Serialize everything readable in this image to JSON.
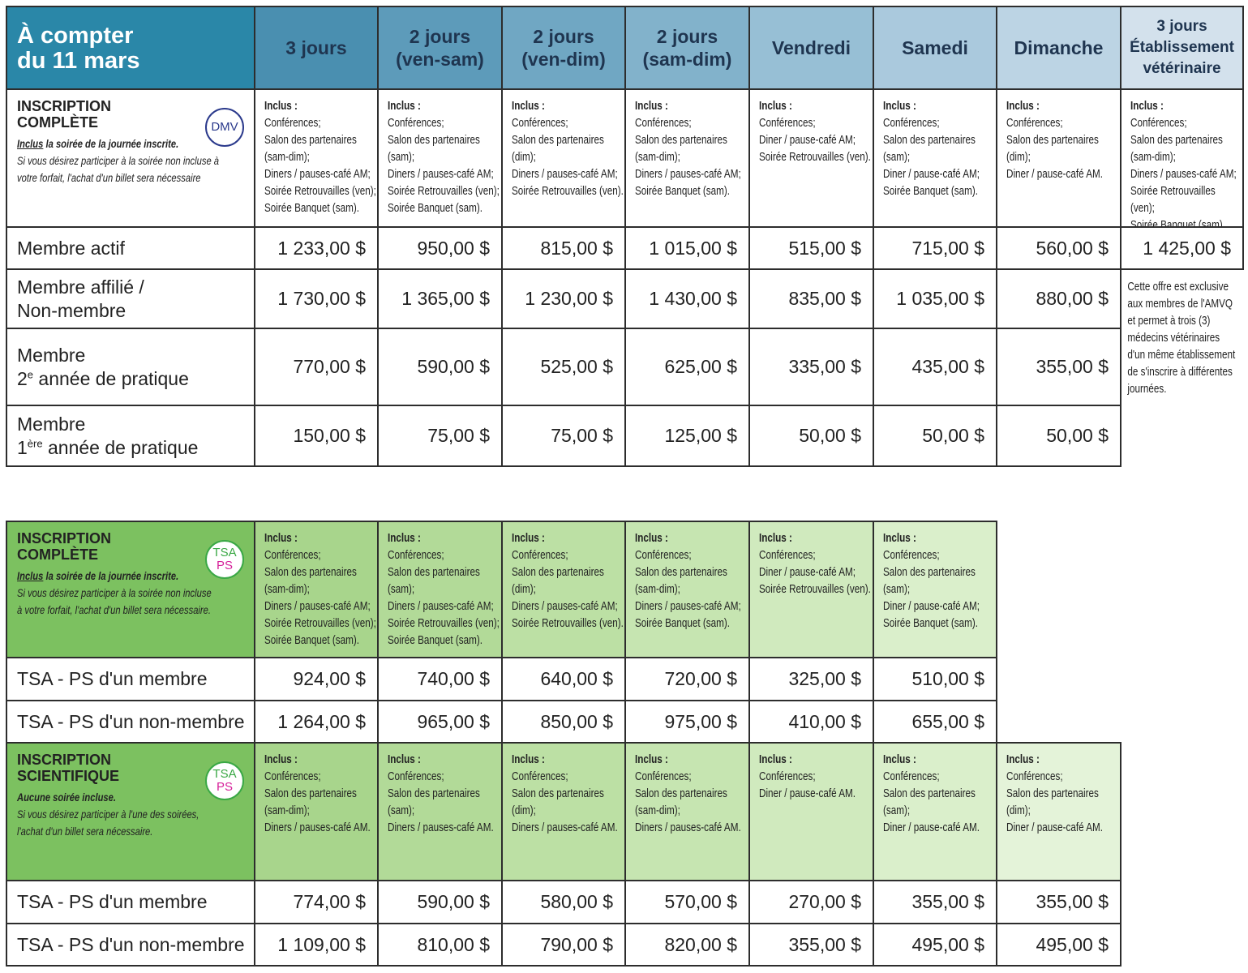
{
  "pricing_dmv": {
    "corner": [
      "À compter",
      "du 11 mars"
    ],
    "columns": [
      [
        "3 jours"
      ],
      [
        "2 jours",
        "(ven-sam)"
      ],
      [
        "2 jours",
        "(ven-dim)"
      ],
      [
        "2 jours",
        "(sam-dim)"
      ],
      [
        "Vendredi"
      ],
      [
        "Samedi"
      ],
      [
        "Dimanche"
      ],
      [
        "3 jours",
        "Établissement",
        "vétérinaire"
      ]
    ],
    "inclusion": {
      "title": [
        "INSCRIPTION",
        "COMPLÈTE"
      ],
      "badge": [
        "DMV"
      ],
      "badge_colors": [
        "#2b3a8c"
      ],
      "note_emph": "Inclus",
      "note_bold": " la soirée de la journée inscrite.",
      "note_lines": [
        "Si vous désirez participer à la soirée non incluse à",
        "votre forfait, l'achat d'un billet sera nécessaire"
      ],
      "cells": [
        {
          "heading": "Inclus :",
          "items": [
            "Conférences;",
            "Salon des partenaires",
            "(sam-dim);",
            "Diners / pauses-café AM;",
            "Soirée Retrouvailles (ven);",
            "Soirée Banquet (sam)."
          ]
        },
        {
          "heading": "Inclus :",
          "items": [
            "Conférences;",
            "Salon des partenaires",
            "(sam);",
            "Diners / pauses-café AM;",
            "Soirée Retrouvailles (ven);",
            "Soirée Banquet (sam)."
          ]
        },
        {
          "heading": "Inclus :",
          "items": [
            "Conférences;",
            "Salon des partenaires",
            "(dim);",
            "Diners / pauses-café AM;",
            "Soirée Retrouvailles (ven)."
          ]
        },
        {
          "heading": "Inclus :",
          "items": [
            "Conférences;",
            "Salon des partenaires",
            "(sam-dim);",
            "Diners / pauses-café AM;",
            "Soirée Banquet (sam)."
          ]
        },
        {
          "heading": "Inclus :",
          "items": [
            "Conférences;",
            "Diner / pause-café AM;",
            "Soirée Retrouvailles (ven)."
          ]
        },
        {
          "heading": "Inclus :",
          "items": [
            "Conférences;",
            "Salon des partenaires",
            "(sam);",
            "Diner / pause-café AM;",
            "Soirée Banquet (sam)."
          ]
        },
        {
          "heading": "Inclus :",
          "items": [
            "Conférences;",
            "Salon des partenaires",
            "(dim);",
            "Diner / pause-café AM."
          ]
        },
        {
          "heading": "Inclus :",
          "items": [
            "Conférences;",
            "Salon des partenaires",
            "(sam-dim);",
            "Diners / pauses-café AM;",
            "Soirée Retrouvailles (ven);",
            "Soirée Banquet (sam)."
          ]
        }
      ]
    },
    "rows": [
      {
        "label": [
          [
            "Membre actif"
          ]
        ],
        "prices": [
          "1 233,00 $",
          "950,00 $",
          "815,00 $",
          "1 015,00 $",
          "515,00 $",
          "715,00 $",
          "560,00 $",
          "1 425,00 $"
        ]
      },
      {
        "label": [
          [
            "Membre affilié /"
          ],
          [
            "Non-membre"
          ]
        ],
        "prices": [
          "1 730,00 $",
          "1 365,00 $",
          "1 230,00 $",
          "1 430,00 $",
          "835,00 $",
          "1 035,00 $",
          "880,00 $"
        ]
      },
      {
        "label": [
          [
            "Membre"
          ],
          [
            "2",
            {
              "sup": "e"
            },
            " année de pratique"
          ]
        ],
        "prices": [
          "770,00 $",
          "590,00 $",
          "525,00 $",
          "625,00 $",
          "335,00 $",
          "435,00 $",
          "355,00 $"
        ]
      },
      {
        "label": [
          [
            "Membre"
          ],
          [
            "1",
            {
              "sup": "ère"
            },
            " année de pratique"
          ]
        ],
        "prices": [
          "150,00 $",
          "75,00 $",
          "75,00 $",
          "125,00 $",
          "50,00 $",
          "50,00 $",
          "50,00 $"
        ]
      }
    ],
    "exclusive_note": [
      "Cette offre est exclusive",
      "aux membres de l'AMVQ",
      "et permet à trois (3)",
      "médecins vétérinaires",
      "d'un même établissement",
      "de s'inscrire à différentes",
      "journées."
    ]
  },
  "pricing_tsa": {
    "complete": {
      "inclusion": {
        "title": [
          "INSCRIPTION",
          "COMPLÈTE"
        ],
        "badge": [
          "TSA",
          "PS"
        ],
        "badge_colors": [
          "#3aa845",
          "#d6219a"
        ],
        "note_emph": "Inclus",
        "note_bold": " la soirée de la journée inscrite.",
        "note_lines": [
          "Si vous désirez participer à la soirée non incluse",
          "à votre forfait, l'achat d'un billet sera nécessaire."
        ],
        "cells": [
          {
            "heading": "Inclus :",
            "items": [
              "Conférences;",
              "Salon des partenaires",
              "(sam-dim);",
              "Diners / pauses-café AM;",
              "Soirée Retrouvailles (ven);",
              "Soirée Banquet (sam)."
            ]
          },
          {
            "heading": "Inclus :",
            "items": [
              "Conférences;",
              "Salon des partenaires",
              "(sam);",
              "Diners / pauses-café AM;",
              "Soirée Retrouvailles (ven);",
              "Soirée Banquet (sam)."
            ]
          },
          {
            "heading": "Inclus :",
            "items": [
              "Conférences;",
              "Salon des partenaires",
              "(dim);",
              "Diners / pauses-café AM;",
              "Soirée Retrouvailles (ven)."
            ]
          },
          {
            "heading": "Inclus :",
            "items": [
              "Conférences;",
              "Salon des partenaires",
              "(sam-dim);",
              "Diners / pauses-café AM;",
              "Soirée Banquet (sam)."
            ]
          },
          {
            "heading": "Inclus :",
            "items": [
              "Conférences;",
              "Diner / pause-café AM;",
              "Soirée Retrouvailles (ven)."
            ]
          },
          {
            "heading": "Inclus :",
            "items": [
              "Conférences;",
              "Salon des partenaires",
              "(sam);",
              "Diner / pause-café AM;",
              "Soirée Banquet (sam)."
            ]
          }
        ]
      },
      "rows": [
        {
          "label": [
            [
              "TSA - PS  d'un membre"
            ]
          ],
          "prices": [
            "924,00 $",
            "740,00 $",
            "640,00 $",
            "720,00 $",
            "325,00 $",
            "510,00 $"
          ]
        },
        {
          "label": [
            [
              "TSA - PS  d'un non-membre"
            ]
          ],
          "prices": [
            "1 264,00 $",
            "965,00 $",
            "850,00 $",
            "975,00 $",
            "410,00 $",
            "655,00 $"
          ]
        }
      ]
    },
    "scientific": {
      "inclusion": {
        "title": [
          "INSCRIPTION",
          "SCIENTIFIQUE"
        ],
        "badge": [
          "TSA",
          "PS"
        ],
        "badge_colors": [
          "#3aa845",
          "#d6219a"
        ],
        "note_bold": "Aucune soirée incluse.",
        "note_lines": [
          "Si vous désirez participer à l'une des soirées,",
          "l'achat d'un billet sera nécessaire."
        ],
        "cells": [
          {
            "heading": "Inclus :",
            "items": [
              "Conférences;",
              "Salon des partenaires",
              "(sam-dim);",
              "Diners / pauses-café AM."
            ]
          },
          {
            "heading": "Inclus :",
            "items": [
              "Conférences;",
              "Salon des partenaires",
              "(sam);",
              "Diners / pauses-café AM."
            ]
          },
          {
            "heading": "Inclus :",
            "items": [
              "Conférences;",
              "Salon des partenaires",
              "(dim);",
              "Diners / pauses-café AM."
            ]
          },
          {
            "heading": "Inclus :",
            "items": [
              "Conférences;",
              "Salon des partenaires",
              "(sam-dim);",
              "Diners / pauses-café AM."
            ]
          },
          {
            "heading": "Inclus :",
            "items": [
              "Conférences;",
              "Diner / pause-café AM."
            ]
          },
          {
            "heading": "Inclus :",
            "items": [
              "Conférences;",
              "Salon des partenaires",
              "(sam);",
              "Diner / pause-café AM."
            ]
          },
          {
            "heading": "Inclus :",
            "items": [
              "Conférences;",
              "Salon des partenaires",
              "(dim);",
              "Diner / pause-café AM."
            ]
          }
        ]
      },
      "rows": [
        {
          "label": [
            [
              "TSA - PS  d'un membre"
            ]
          ],
          "prices": [
            "774,00 $",
            "590,00 $",
            "580,00 $",
            "570,00 $",
            "270,00 $",
            "355,00 $",
            "355,00 $"
          ]
        },
        {
          "label": [
            [
              "TSA - PS  d'un non-membre"
            ]
          ],
          "prices": [
            "1 109,00 $",
            "810,00 $",
            "790,00 $",
            "820,00 $",
            "355,00 $",
            "495,00 $",
            "495,00 $"
          ]
        }
      ]
    }
  }
}
